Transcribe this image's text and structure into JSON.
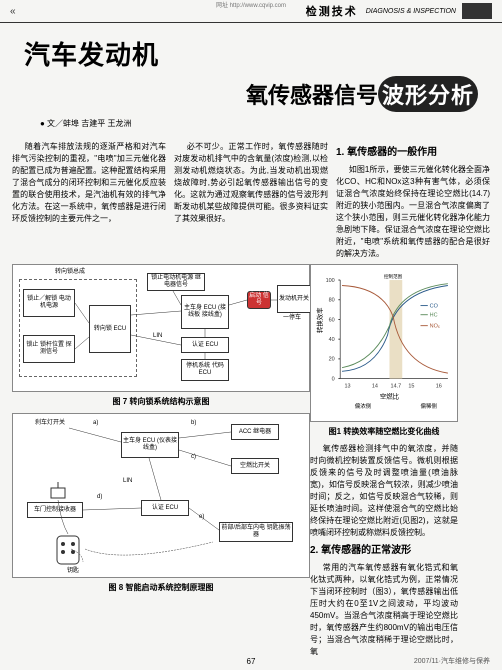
{
  "top_url": "网址 http://www.cqvip.com",
  "header": {
    "chevrons": "«",
    "title": "检测技术",
    "subtitle": "DIAGNOSIS & INSPECTION"
  },
  "title": {
    "line1": "汽车发动机",
    "line2_plain": "氧传感器信号",
    "line2_highlight": "波形分析"
  },
  "author": "● 文／蚌埠 吉建平 王龙洲",
  "intro": {
    "col1": "随着汽车排放法规的逐渐严格和对汽车排气污染控制的重视，\"电喷\"加三元催化器的配置已成为普遍配置。这种配置结构采用了混合气成分的闭环控制和三元催化反应装置的联合使用技术，是汽油机有效的排气净化方法。在这一系统中，氧传感器是进行闭环反馈控制的主要元件之一，",
    "col2": "必不可少。正常工作时，氧传感器随时对废发动机排气中的含氧量(浓度)检测,以检测发动机燃烧状态。为此,当发动机出现燃烧故障时,势必引起氧传感器输出信号的变化。这就为通过观察氧传感器的信号波形判断发动机某些故障提供可能。很多资料证实了其效果很好。"
  },
  "section1": {
    "heading": "1. 氧传感器的一般作用",
    "body": "如图1所示，要使三元催化转化器全面净化CO、HC和NOx这3种有害气体，必须保证混合气浓度始终保持在理论空燃比(14.7)附近的狭小范围内。一旦混合气浓度偏离了这个狭小范围，则三元催化转化器净化能力急剧地下降。保证混合气浓度在理论空燃比附近，\"电喷\"系统和氧传感器的配合是很好的解决方法。"
  },
  "fig7": {
    "caption": "图 7 转向锁系统结构示意图",
    "region_title": "转向锁总成",
    "blk_motor": "锁止／解锁\n电动机电源",
    "blk_sensor": "锁止\n锁杆位置\n探测信号",
    "blk_steer_ecu": "转向锁 ECU",
    "blk_relay": "锁止电动机电源\n继电器信号",
    "blk_main_ecu": "主车身 ECU\n(接线板\n接线盒)",
    "blk_cert": "认证 ECU",
    "blk_park": "停机系统\n代码 ECU",
    "blk_start": "启动\n信号",
    "blk_engine": "发动机开关",
    "lbl_lin": "LIN",
    "lbl_park": "一停车"
  },
  "fig8": {
    "caption": "图 8 智能启动系统控制原理图",
    "lbl_brake": "刹车灯开关",
    "blk_main": "主车身 ECU\n(仪表接线盒)",
    "blk_acc": "ACC 继电器",
    "blk_air": "空燃比开关",
    "blk_door": "车门控制接收器",
    "blk_cert": "认证 ECU",
    "blk_trunk": "前部/后部车内电\n钥匙振荡器",
    "lbl_key": "钥匙",
    "lbl_lin": "LIN",
    "lbl_a": "a)",
    "lbl_b": "b)",
    "lbl_c": "c)",
    "lbl_d": "d)",
    "lbl_e": "e)"
  },
  "chart": {
    "caption": "图1 转换效率随空燃比变化曲线",
    "ylabel": "转换效率",
    "xlabel": "空燃比",
    "y_ticks": [
      0,
      20,
      40,
      60,
      80,
      100
    ],
    "x_ticks": [
      13,
      14,
      "14.7",
      15,
      16
    ],
    "series": [
      {
        "name": "CO",
        "color": "#2a5a8a"
      },
      {
        "name": "HC",
        "color": "#5a8a5a"
      },
      {
        "name": "NOx",
        "color": "#a85a3a"
      }
    ],
    "band_color": "#eadfc5",
    "lbl_rich": "偏浓侧",
    "lbl_lean": "偏稀侧",
    "lbl_control": "控制范围"
  },
  "right_text": {
    "p1": "氧传感器检测排气中的氧浓度，并随时向微机控制装置反馈信号。微机则根据反馈来的信号及时调整喷油量(喷油脉宽)，如信号反映混合气较浓，则减少喷油时间；反之，如信号反映混合气较稀，则延长喷油时间。这样使混合气的空燃比始终保持在理论空燃比附近(见图2)，这就是喷嘴闭环控制或称燃料反馈控制。"
  },
  "section2": {
    "heading": "2. 氧传感器的正常波形",
    "body": "常用的汽车氧传感器有氧化锆式和氧化钛式两种，以氧化锆式为例，正常情况下当闭环控制时（图3），氧传感器输出低压时大约在0至1V之间波动，平均波动450mV。当混合气浓度稍高于理论空燃比时，氧传感器产生约800mV的输出电压信号；当混合气浓度稍稀于理论空燃比时，氧"
  },
  "footer": {
    "issue": "2007/11·汽车维修与保养",
    "page": "67"
  }
}
